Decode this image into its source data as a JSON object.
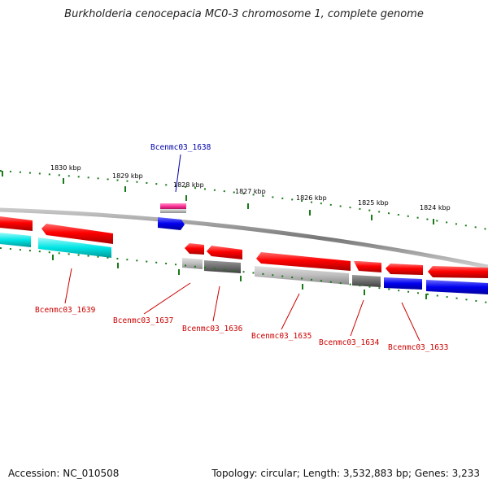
{
  "title": "Burkholderia cenocepacia MC0-3 chromosome 1, complete genome",
  "footer": {
    "accession": "Accession: NC_010508",
    "summary": "Topology: circular; Length: 3,532,883 bp; Genes: 3,233"
  },
  "kbp_ticks": [
    "1830 kbp",
    "1829 kbp",
    "1828 kbp",
    "1827 kbp",
    "1826 kbp",
    "1825 kbp",
    "1824 kbp"
  ],
  "gene_labels": [
    {
      "name": "Bcenmc03_1638",
      "color": "#0000aa"
    },
    {
      "name": "Bcenmc03_1639",
      "color": "#cc0000"
    },
    {
      "name": "Bcenmc03_1637",
      "color": "#cc0000"
    },
    {
      "name": "Bcenmc03_1636",
      "color": "#cc0000"
    },
    {
      "name": "Bcenmc03_1635",
      "color": "#cc0000"
    },
    {
      "name": "Bcenmc03_1634",
      "color": "#cc0000"
    },
    {
      "name": "Bcenmc03_1633",
      "color": "#cc0000"
    }
  ],
  "colors": {
    "cds_forward": "#ff0000",
    "cds_reverse": "#ff0000",
    "cyan_track": "#00e5e5",
    "gray_track": "#808080",
    "blue_track": "#0000ee",
    "pink_track": "#ff3399",
    "backbone": "#888888",
    "tick": "#1a7a1a"
  }
}
